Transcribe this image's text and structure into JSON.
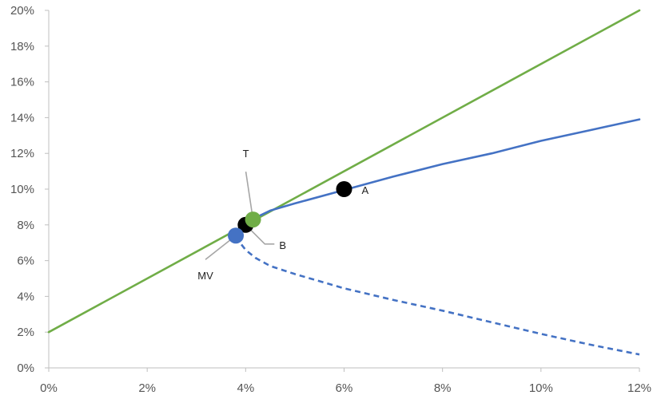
{
  "chart_data": {
    "type": "line",
    "title": "",
    "xlabel": "",
    "ylabel": "",
    "xlim": [
      0,
      12
    ],
    "ylim": [
      0,
      20
    ],
    "x_ticks": [
      "0%",
      "2%",
      "4%",
      "6%",
      "8%",
      "10%",
      "12%"
    ],
    "y_ticks": [
      "0%",
      "2%",
      "4%",
      "6%",
      "8%",
      "10%",
      "12%",
      "14%",
      "16%",
      "18%",
      "20%"
    ],
    "grid": false,
    "legend": "none",
    "series": [
      {
        "style": "line-green",
        "color": "#70ad47",
        "x": [
          0,
          12
        ],
        "y": [
          2.0,
          20.0
        ]
      },
      {
        "style": "curve-blue-solid",
        "color": "#4472c4",
        "x": [
          3.85,
          3.9,
          4.0,
          4.2,
          4.5,
          5.0,
          6.0,
          7.0,
          8.0,
          9.0,
          10.0,
          11.0,
          12.0
        ],
        "y": [
          7.4,
          7.8,
          8.1,
          8.4,
          8.8,
          9.2,
          9.95,
          10.7,
          11.4,
          12.0,
          12.7,
          13.3,
          13.9
        ]
      },
      {
        "style": "curve-blue-dashed",
        "color": "#4472c4",
        "x": [
          3.85,
          3.9,
          4.0,
          4.2,
          4.5,
          5.0,
          6.0,
          7.0,
          8.0,
          9.0,
          10.0,
          11.0,
          12.0
        ],
        "y": [
          7.4,
          6.95,
          6.6,
          6.15,
          5.7,
          5.25,
          4.45,
          3.8,
          3.2,
          2.55,
          1.9,
          1.3,
          0.75
        ]
      }
    ],
    "points": [
      {
        "label": "A",
        "x": 6.0,
        "y": 10.0,
        "color": "#000000"
      },
      {
        "label": "",
        "x": 4.0,
        "y": 8.0,
        "color": "#000000"
      },
      {
        "label": "MV",
        "x": 3.8,
        "y": 7.4,
        "color": "#4472c4"
      },
      {
        "label": "T",
        "x": 4.15,
        "y": 8.3,
        "color": "#70ad47"
      }
    ],
    "annotations": [
      {
        "label": "T",
        "x": 4.15,
        "y": 8.3
      },
      {
        "label": "B",
        "x": 4.0,
        "y": 8.0
      },
      {
        "label": "MV",
        "x": 3.8,
        "y": 7.4
      }
    ]
  }
}
